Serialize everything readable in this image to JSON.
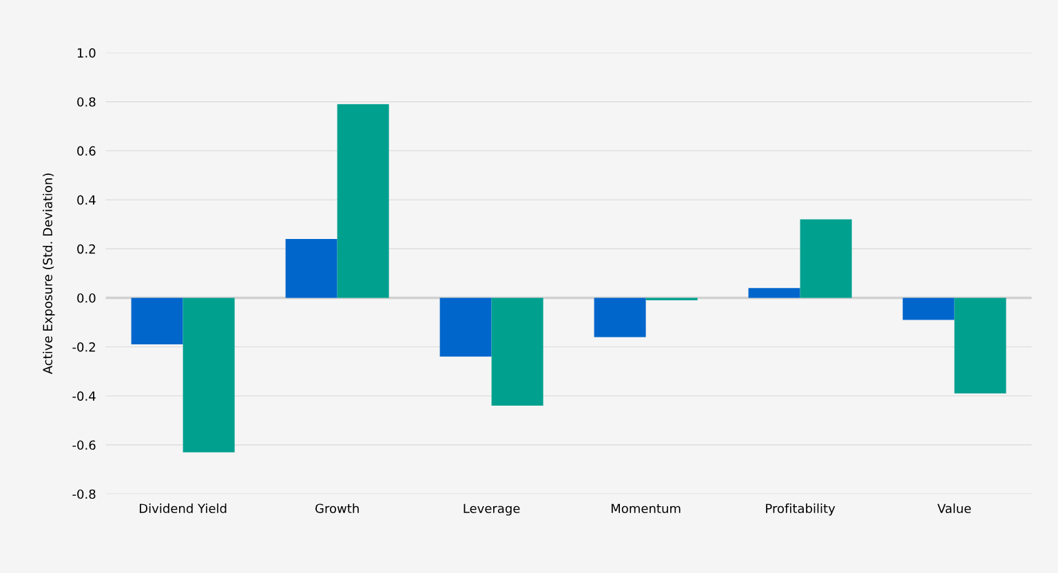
{
  "chart_data": {
    "type": "bar",
    "ylabel": "Active Exposure (Std. Deviation)",
    "categories": [
      "Dividend Yield",
      "Growth",
      "Leverage",
      "Momentum",
      "Profitability",
      "Value"
    ],
    "series": [
      {
        "color": "#0066cc",
        "values": [
          -0.19,
          0.24,
          -0.24,
          -0.16,
          0.04,
          -0.09
        ]
      },
      {
        "color": "#00a08f",
        "values": [
          -0.63,
          0.79,
          -0.44,
          -0.01,
          0.32,
          -0.39
        ]
      }
    ],
    "ylim": [
      -0.8,
      1.0
    ],
    "yticks": [
      {
        "value": -0.8,
        "label": "-0.8"
      },
      {
        "value": -0.6,
        "label": "-0.6"
      },
      {
        "value": -0.4,
        "label": "-0.4"
      },
      {
        "value": -0.2,
        "label": "-0.2"
      },
      {
        "value": 0,
        "label": "0.0"
      },
      {
        "value": 0.2,
        "label": "0.2"
      },
      {
        "value": 0.4,
        "label": "0.4"
      },
      {
        "value": 0.6,
        "label": "0.6"
      },
      {
        "value": 0.8,
        "label": "0.8"
      },
      {
        "value": 1.0,
        "label": "1.0"
      }
    ],
    "grid": "y",
    "legend": false
  }
}
